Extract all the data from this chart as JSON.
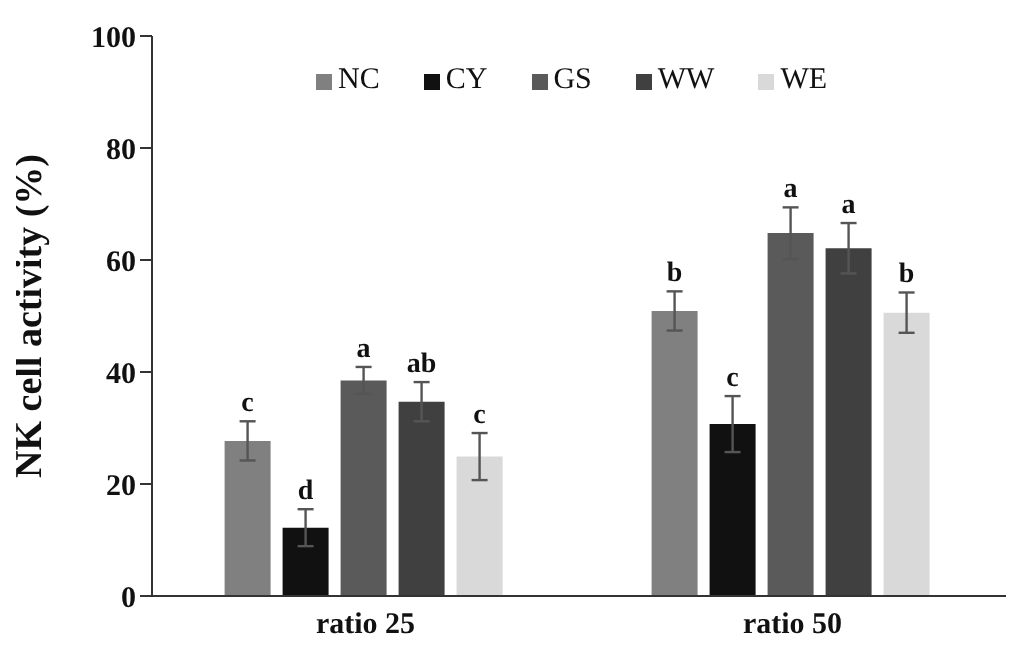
{
  "chart_data": {
    "type": "bar",
    "ylabel": "NK cell activity (%)",
    "categories": [
      "ratio 25",
      "ratio 50"
    ],
    "ylim": [
      0,
      100
    ],
    "yticks": [
      0,
      20,
      40,
      60,
      80,
      100
    ],
    "grid": false,
    "legend": "top",
    "series": [
      {
        "name": "NC",
        "color": "#808080",
        "values": [
          27.7,
          50.9
        ],
        "errors": [
          3.5,
          3.5
        ],
        "value_labels": [
          "c",
          "b"
        ]
      },
      {
        "name": "CY",
        "color": "#111111",
        "values": [
          12.2,
          30.7
        ],
        "errors": [
          3.3,
          5
        ],
        "value_labels": [
          "d",
          "c"
        ]
      },
      {
        "name": "GS",
        "color": "#5a5a5a",
        "values": [
          38.5,
          64.8
        ],
        "errors": [
          2.4,
          4.6
        ],
        "value_labels": [
          "a",
          "a"
        ]
      },
      {
        "name": "WW",
        "color": "#404040",
        "values": [
          34.7,
          62.1
        ],
        "errors": [
          3.5,
          4.5
        ],
        "value_labels": [
          "ab",
          "a"
        ]
      },
      {
        "name": "WE",
        "color": "#d9d9d9",
        "values": [
          24.9,
          50.6
        ],
        "errors": [
          4.2,
          3.6
        ],
        "value_labels": [
          "c",
          "b"
        ]
      }
    ]
  }
}
